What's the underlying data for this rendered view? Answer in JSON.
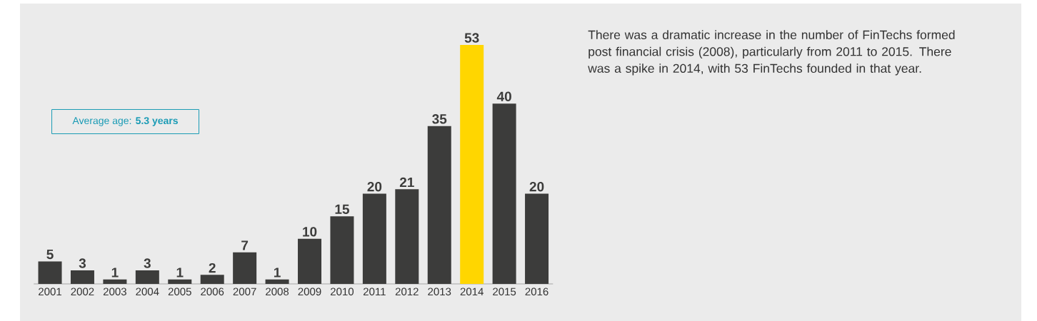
{
  "chart_data": {
    "type": "bar",
    "categories": [
      "2001",
      "2002",
      "2003",
      "2004",
      "2005",
      "2006",
      "2007",
      "2008",
      "2009",
      "2010",
      "2011",
      "2012",
      "2013",
      "2014",
      "2015",
      "2016"
    ],
    "values": [
      5,
      3,
      1,
      3,
      1,
      2,
      7,
      1,
      10,
      15,
      20,
      21,
      35,
      53,
      40,
      20
    ],
    "colors": [
      "#3c3c3b",
      "#3c3c3b",
      "#3c3c3b",
      "#3c3c3b",
      "#3c3c3b",
      "#3c3c3b",
      "#3c3c3b",
      "#3c3c3b",
      "#3c3c3b",
      "#3c3c3b",
      "#3c3c3b",
      "#3c3c3b",
      "#3c3c3b",
      "#ffd600",
      "#3c3c3b",
      "#3c3c3b"
    ],
    "data_labels": true,
    "annotations": [
      "Average age: **5.3 years**",
      "There was a dramatic increase in the number of FinTechs formed post financial crisis (2008), particularly from 2011 to 2015. There was a spike in 2014, with 53 FinTechs founded in that year."
    ]
  }
}
